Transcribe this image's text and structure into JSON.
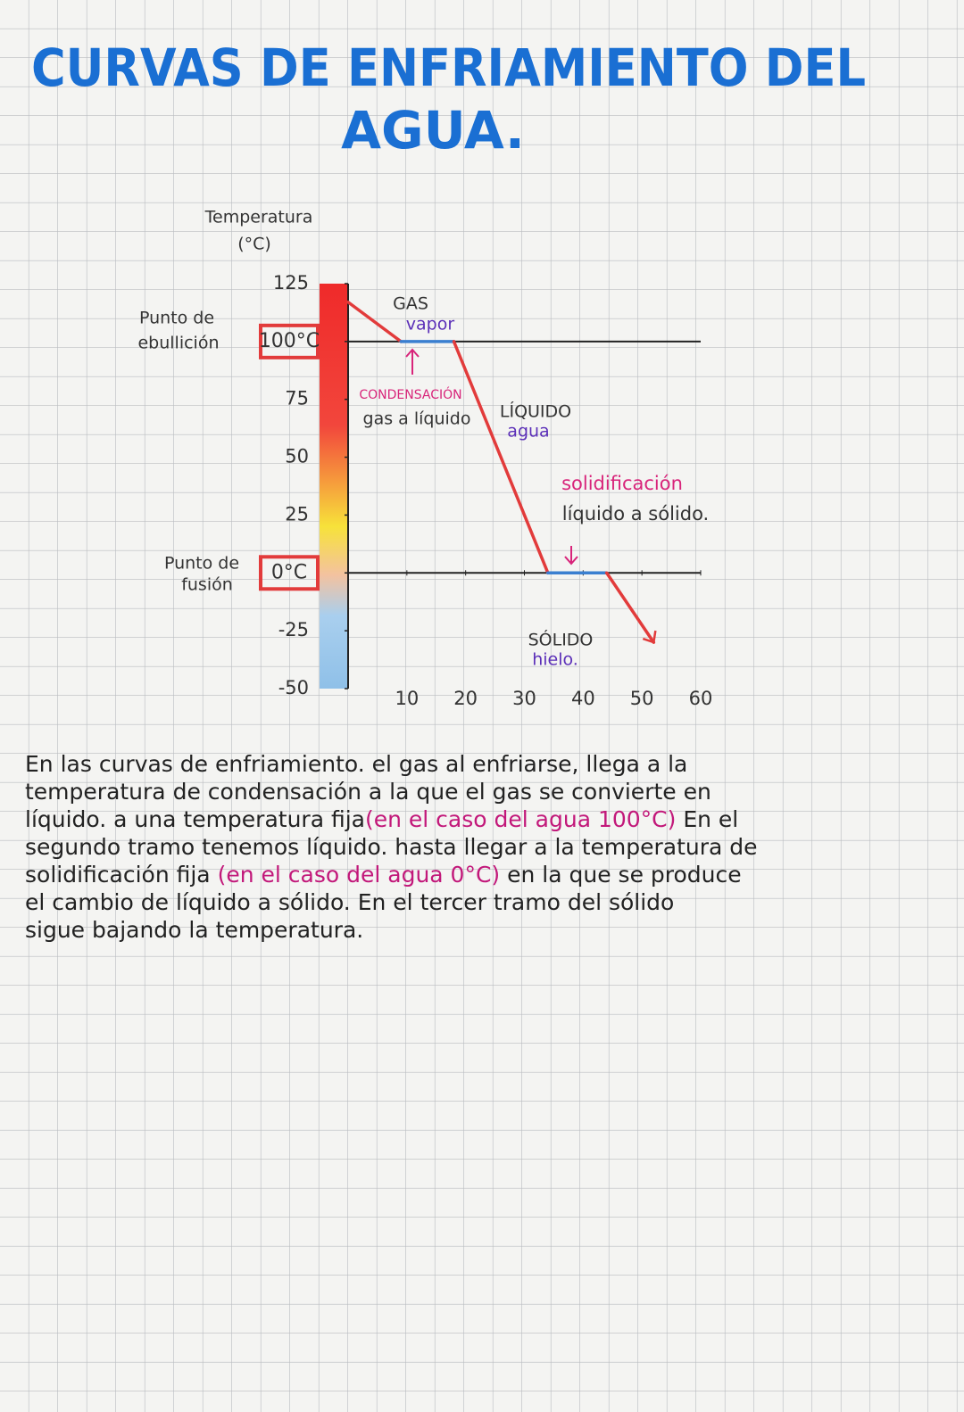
{
  "title": [
    "CURVAS DE ENFRIAMIENTO DEL",
    "AGUA."
  ],
  "chart_data": {
    "type": "line",
    "ylabel": [
      "Temperatura",
      "(°C)"
    ],
    "x": [
      0,
      9,
      18,
      34,
      44,
      52
    ],
    "series": [
      {
        "values": [
          117,
          100,
          100,
          0,
          0,
          -30
        ],
        "color": "#e23b3b",
        "segment_colors": [
          "#e23b3b",
          "#3a7fd0",
          "#e23b3b",
          "#3a7fd0",
          "#e23b3b"
        ]
      }
    ],
    "xlim": [
      0,
      60
    ],
    "xticks": [
      10,
      20,
      30,
      40,
      50,
      60
    ],
    "ylim": [
      -50,
      125
    ],
    "yticks": [
      -50,
      -25,
      {
        "value": 0,
        "label": "0°C"
      },
      25,
      50,
      75,
      {
        "value": 100,
        "label": "100°C"
      },
      125
    ],
    "hlines": [
      100,
      0
    ],
    "annotations": {
      "boiling": [
        "Punto de",
        "ebullición"
      ],
      "melting": [
        "Punto de",
        "fusión"
      ],
      "gas": "GAS",
      "vapor": "vapor",
      "condensation": "CONDENSACIÓN",
      "gas_to_liquid": "gas a líquido",
      "liquid": "LÍQUIDO",
      "water": "agua",
      "solidification": "solidificación",
      "liquid_to_solid": "líquido a sólido.",
      "solid": "SÓLIDO",
      "ice": "hielo."
    }
  },
  "paragraph": [
    [
      {
        "text": "En las curvas de enfriamiento. el gas al enfriarse, llega a la",
        "color": "#222"
      }
    ],
    [
      {
        "text": "temperatura de condensación a la que el gas se convierte en",
        "color": "#222"
      }
    ],
    [
      {
        "text": "líquido. a una temperatura fija",
        "color": "#222"
      },
      {
        "text": "(en el caso del agua 100°C)",
        "color": "#c2187a"
      },
      {
        "text": " En el",
        "color": "#222"
      }
    ],
    [
      {
        "text": "segundo tramo tenemos líquido. hasta llegar a la temperatura de",
        "color": "#222"
      }
    ],
    [
      {
        "text": "solidificación fija ",
        "color": "#222"
      },
      {
        "text": "(en el caso del agua 0°C)",
        "color": "#c2187a"
      },
      {
        "text": " en la que se produce",
        "color": "#222"
      }
    ],
    [
      {
        "text": "el cambio de líquido a sólido. En el tercer tramo del sólido",
        "color": "#222"
      }
    ],
    [
      {
        "text": "sigue bajando la temperatura.",
        "color": "#222"
      }
    ]
  ]
}
